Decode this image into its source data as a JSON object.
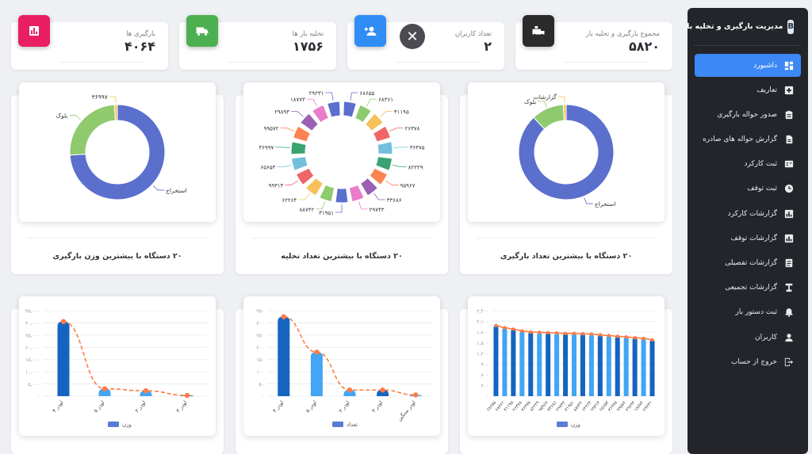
{
  "sidebar": {
    "title": "مدیریت بارگیری و تخلیه بار",
    "items": [
      {
        "label": "داشبورد",
        "icon": "dashboard-icon",
        "active": true
      },
      {
        "label": "تعاریف",
        "icon": "add-box-icon"
      },
      {
        "label": "صدور حواله بارگیری",
        "icon": "clipboard-icon"
      },
      {
        "label": "گزارش حواله های صادره",
        "icon": "document-icon"
      },
      {
        "label": "ثبت کارکرد",
        "icon": "card-icon"
      },
      {
        "label": "ثبت توقف",
        "icon": "clock-icon"
      },
      {
        "label": "گزارشات کارکرد",
        "icon": "bar-chart-icon"
      },
      {
        "label": "گزارشات توقف",
        "icon": "bar-chart-icon"
      },
      {
        "label": "گزارشات تفصیلی",
        "icon": "report-icon"
      },
      {
        "label": "گزارشات تجمیعی",
        "icon": "summary-icon"
      },
      {
        "label": "ثبت دستور بار",
        "icon": "bell-icon"
      },
      {
        "label": "کاربران",
        "icon": "user-icon"
      },
      {
        "label": "خروج از حساب",
        "icon": "logout-icon"
      }
    ]
  },
  "stats": [
    {
      "label": "مجموع بارگیری و تخلیه بار",
      "value": "۵۸۲۰",
      "icon": "truck-loading-icon",
      "color": "#2b2b2b"
    },
    {
      "label": "تعداد کاربران",
      "value": "۲",
      "icon": "person-add-icon",
      "color": "#2f8df5"
    },
    {
      "label": "تخلیه بار ها",
      "value": "۱۷۵۶",
      "icon": "truck-icon",
      "color": "#4caf50"
    },
    {
      "label": "بارگیری ها",
      "value": "۴۰۶۴",
      "icon": "bar-chart-icon",
      "color": "#e91e63"
    }
  ],
  "close_label": "✕",
  "charts": {
    "count_loading": {
      "title": "۲۰ دستگاه با بیشترین تعداد بارگیری",
      "chart_data": {
        "type": "pie",
        "labels": [
          "استخراج",
          "بلوک",
          "گزارشات"
        ],
        "values": [
          88,
          11,
          1
        ],
        "colors": [
          "#5b6fcc",
          "#8fca6e",
          "#f6c15b"
        ]
      }
    },
    "count_unloading": {
      "title": "۲۰ دستگاه با بیشترین تعداد تخلیه",
      "chart_data": {
        "type": "pie",
        "labels": [
          "۶۸۶۵۵",
          "۶۸۳۶۱",
          "۴۱۱۹۵",
          "۲۶۳۷۸",
          "۳۶۴۷۵",
          "۸۲۲۲۹",
          "۹۵۹۶۷",
          "۳۳۶۸۶",
          "۲۹۷۴۳",
          "۳۱۹۵۱",
          "۸۸۷۴۲",
          "۶۲۲۶۴",
          "۹۹۳۱۴",
          "۶۵۶۵۳",
          "۳۶۹۹۷",
          "۹۹۵۷۲",
          "۲۹۸۹۳",
          "۱۸۷۷۳",
          "۲۹۲۳۱"
        ],
        "values": [
          1,
          1,
          1,
          1,
          1,
          1,
          1,
          1,
          1,
          1,
          1,
          1,
          1,
          1,
          1,
          1,
          1,
          1,
          1
        ],
        "colors": [
          "#5b6fcc",
          "#8fca6e",
          "#f6c15b",
          "#ee6666",
          "#73c0de",
          "#3ba272",
          "#fc8452",
          "#9a60b4",
          "#ea7ccc",
          "#5b6fcc",
          "#8fca6e",
          "#f6c15b",
          "#ee6666",
          "#73c0de",
          "#3ba272",
          "#fc8452",
          "#9a60b4",
          "#ea7ccc",
          "#5b6fcc"
        ]
      }
    },
    "weight_loading": {
      "title": "۲۰ دستگاه با بیشترین وزن بارگیری",
      "chart_data": {
        "type": "pie",
        "labels": [
          "استخراج",
          "بلوک",
          "۳۶۹۹۷"
        ],
        "values": [
          74,
          25,
          1
        ],
        "colors": [
          "#5b6fcc",
          "#8fca6e",
          "#f6c15b"
        ]
      }
    }
  },
  "bar_charts": [
    {
      "legend": "وزن",
      "chart_data": {
        "type": "bar",
        "categories": [
          "لودر ۴",
          "لودر ۵",
          "لودر ۲",
          "لودر ۳"
        ],
        "values": [
          30500,
          3000,
          2200,
          300
        ],
        "ylim": [
          0,
          35000
        ],
        "yticks": [
          "۰",
          "۵,۰۰۰",
          "۱۰,۰۰۰",
          "۱۵,۰۰۰",
          "۲۰,۰۰۰",
          "۲۵,۰۰۰",
          "۳۰,۰۰۰",
          "۳۵,۰۰۰"
        ]
      }
    },
    {
      "legend": "تعداد",
      "chart_data": {
        "type": "bar",
        "categories": [
          "لودر ۴",
          "لودر ۵",
          "لودر ۲",
          "لودر ۳",
          "لودر سنگین"
        ],
        "values": [
          325,
          180,
          25,
          25,
          5
        ],
        "ylim": [
          0,
          350
        ],
        "yticks": [
          "۰",
          "۵۰",
          "۱۰۰",
          "۱۵۰",
          "۲۰۰",
          "۲۵۰",
          "۳۰۰",
          "۳۵۰"
        ]
      }
    },
    {
      "legend": "وزن",
      "chart_data": {
        "type": "bar",
        "categories": [
          "۶۸۶۵۵",
          "۶۸۳۶۱",
          "۴۱۱۹۵",
          "۲۶۳۷۸",
          "۳۶۴۷۵",
          "۸۲۲۲۹",
          "۹۵۹۶۷",
          "۳۳۶۸۶",
          "۲۹۷۴۳",
          "۳۱۹۵۱",
          "۸۸۷۴۲",
          "۶۲۲۶۴",
          "۹۹۳۱۴",
          "۶۵۶۵۳",
          "۳۶۹۹۷",
          "۹۹۵۷۲",
          "۲۹۸۹۳",
          "۱۸۷۷۳",
          "۲۹۲۳۱"
        ],
        "values": [
          1980,
          1920,
          1880,
          1830,
          1800,
          1790,
          1780,
          1770,
          1760,
          1760,
          1750,
          1740,
          1720,
          1700,
          1680,
          1660,
          1640,
          1620,
          1580
        ],
        "ylim": [
          0,
          2400
        ],
        "yticks": [
          "۰",
          "۳۰۰",
          "۶۰۰",
          "۹۰۰",
          "۱,۲۰۰",
          "۱,۵۰۰",
          "۱,۸۰۰",
          "۲,۱۰۰",
          "۲,۴۰۰"
        ]
      }
    }
  ]
}
